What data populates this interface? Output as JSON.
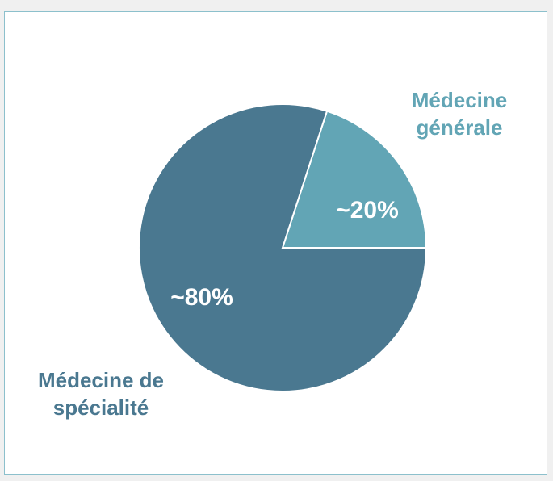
{
  "chart_data": {
    "type": "pie",
    "categories": [
      "Médecine générale",
      "Médecine de spécialité"
    ],
    "values": [
      20,
      80
    ],
    "value_labels": [
      "~20%",
      "~80%"
    ],
    "colors": [
      "#62a5b5",
      "#4a7890"
    ]
  }
}
